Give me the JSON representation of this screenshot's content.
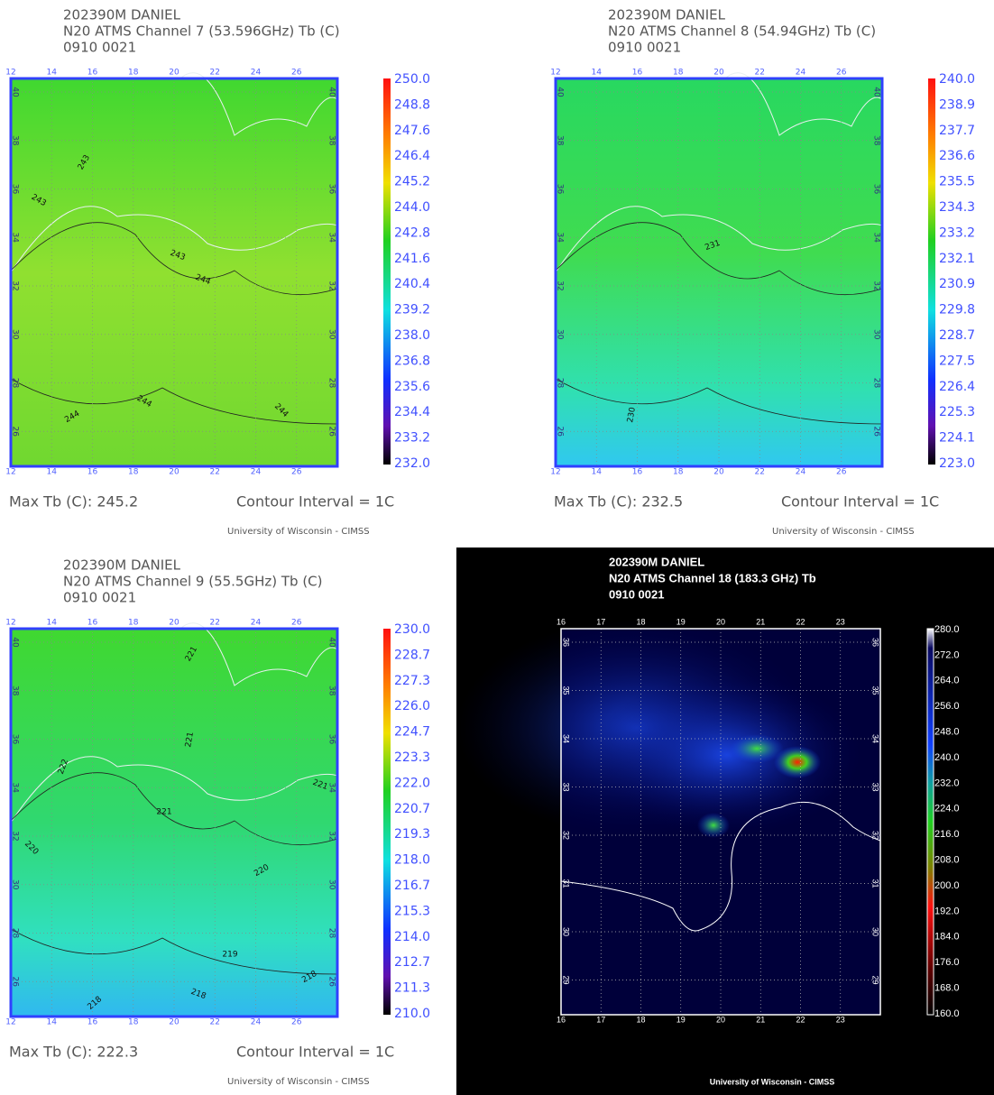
{
  "panels": [
    {
      "title": [
        "202390M DANIEL",
        "N20 ATMS Channel 7 (53.596GHz) Tb (C)",
        "0910 0021"
      ],
      "colorbar": [
        "250.0",
        "248.8",
        "247.6",
        "246.4",
        "245.2",
        "244.0",
        "242.8",
        "241.6",
        "240.4",
        "239.2",
        "238.0",
        "236.8",
        "235.6",
        "234.4",
        "233.2",
        "232.0"
      ],
      "lon": [
        "12",
        "14",
        "16",
        "18",
        "20",
        "22",
        "24",
        "26"
      ],
      "lat": [
        "40",
        "38",
        "36",
        "34",
        "32",
        "30",
        "28",
        "26"
      ],
      "contour_labels": [
        "243",
        "243",
        "243",
        "244",
        "244",
        "244",
        "244"
      ],
      "max": "Max Tb (C): 245.2",
      "contour": "Contour Interval = 1C",
      "credit": "University of Wisconsin - CIMSS"
    },
    {
      "title": [
        "202390M DANIEL",
        "N20 ATMS Channel 8 (54.94GHz) Tb (C)",
        "0910 0021"
      ],
      "colorbar": [
        "240.0",
        "238.9",
        "237.7",
        "236.6",
        "235.5",
        "234.3",
        "233.2",
        "232.1",
        "230.9",
        "229.8",
        "228.7",
        "227.5",
        "226.4",
        "225.3",
        "224.1",
        "223.0"
      ],
      "lon": [
        "12",
        "14",
        "16",
        "18",
        "20",
        "22",
        "24",
        "26"
      ],
      "lat": [
        "40",
        "38",
        "36",
        "34",
        "32",
        "30",
        "28",
        "26"
      ],
      "contour_labels": [
        "231",
        "230"
      ],
      "max": "Max Tb (C): 232.5",
      "contour": "Contour Interval = 1C",
      "credit": "University of Wisconsin - CIMSS"
    },
    {
      "title": [
        "202390M DANIEL",
        "N20 ATMS Channel 9 (55.5GHz) Tb (C)",
        "0910 0021"
      ],
      "colorbar": [
        "230.0",
        "228.7",
        "227.3",
        "226.0",
        "224.7",
        "223.3",
        "222.0",
        "220.7",
        "219.3",
        "218.0",
        "216.7",
        "215.3",
        "214.0",
        "212.7",
        "211.3",
        "210.0"
      ],
      "lon": [
        "12",
        "14",
        "16",
        "18",
        "20",
        "22",
        "24",
        "26"
      ],
      "lat": [
        "40",
        "38",
        "36",
        "34",
        "32",
        "30",
        "28",
        "26"
      ],
      "contour_labels": [
        "221",
        "221",
        "222",
        "221",
        "221",
        "220",
        "220",
        "219",
        "218",
        "218",
        "218"
      ],
      "max": "Max Tb (C): 222.3",
      "contour": "Contour Interval = 1C",
      "credit": "University of Wisconsin - CIMSS"
    },
    {
      "title": [
        "202390M DANIEL",
        "N20   ATMS Channel 18 (183.3 GHz) Tb",
        "0910 0021"
      ],
      "colorbar": [
        "280.0",
        "272.0",
        "264.0",
        "256.0",
        "248.0",
        "240.0",
        "232.0",
        "224.0",
        "216.0",
        "208.0",
        "200.0",
        "192.0",
        "184.0",
        "176.0",
        "168.0",
        "160.0"
      ],
      "lon": [
        "16",
        "17",
        "18",
        "19",
        "20",
        "21",
        "22",
        "23"
      ],
      "lat": [
        "36",
        "35",
        "34",
        "33",
        "32",
        "31",
        "30",
        "29"
      ],
      "credit": "University of Wisconsin - CIMSS"
    }
  ]
}
